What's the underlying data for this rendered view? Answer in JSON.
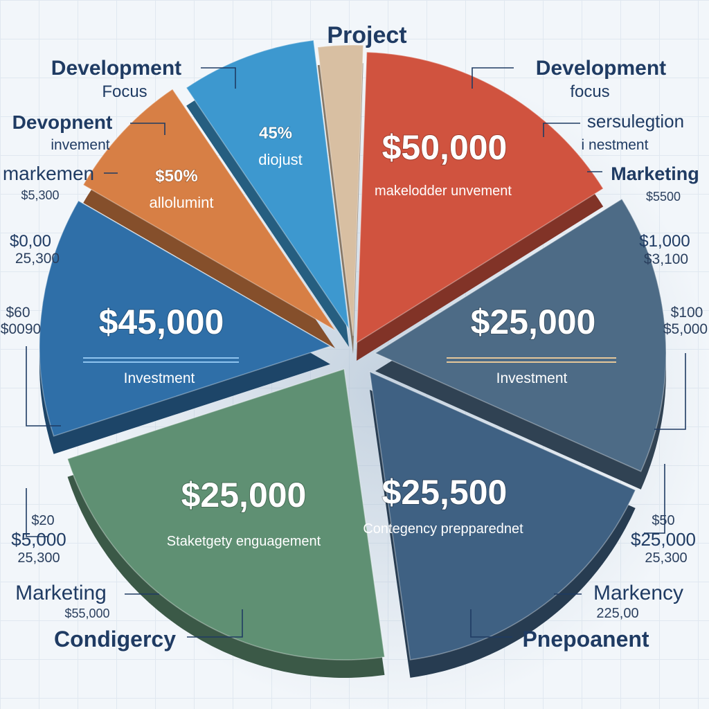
{
  "chart_data": {
    "type": "pie",
    "title": "Project",
    "slices": [
      {
        "value_label": "$50,000",
        "sub_label": "makelodder unvement",
        "color": "#d0533f"
      },
      {
        "value_label": "$25,000",
        "sub_label": "Investment",
        "color": "#4d6b86"
      },
      {
        "value_label": "$25,500",
        "sub_label": "Contegency prepparednet",
        "color": "#3f6183"
      },
      {
        "value_label": "$25,000",
        "sub_label": "Staketgety enguagement",
        "color": "#5f9073"
      },
      {
        "value_label": "$45,000",
        "sub_label": "Investment",
        "color": "#2f6fa8"
      },
      {
        "value_label": "$50%",
        "sub_label": "allolumint",
        "color": "#d77f45"
      },
      {
        "value_label": "45%",
        "sub_label": "diojust",
        "color": "#3d98cf"
      },
      {
        "value_label": "",
        "sub_label": "",
        "color": "#d8bfa2"
      }
    ]
  },
  "side_labels": {
    "top_left": {
      "title": "Development",
      "sub": "Focus"
    },
    "top_right": {
      "title": "Development",
      "sub": "focus"
    },
    "left_1": {
      "title": "Devopnent",
      "sub": "invement"
    },
    "left_2": {
      "title": "markemen",
      "sub": "$5,300"
    },
    "left_3": {
      "line1": "$0,00",
      "line2": "25,300"
    },
    "left_4": {
      "line1": "$60",
      "line2": "$0090"
    },
    "left_5": {
      "line1": "$20",
      "line2": "$5,000",
      "line3": "25,300"
    },
    "left_6": {
      "title": "Marketing",
      "sub": "$55,000"
    },
    "left_7": {
      "title": "Condigercy"
    },
    "right_1": {
      "title": "sersulegtion",
      "sub": "i nestment"
    },
    "right_2": {
      "title": "Marketing",
      "sub": "$5500"
    },
    "right_3": {
      "line1": "$1,000",
      "line2": "$3,100"
    },
    "right_4": {
      "line1": "$100",
      "line2": "$5,000"
    },
    "right_5": {
      "line1": "$50",
      "line2": "$25,000",
      "line3": "25,300"
    },
    "right_6": {
      "title": "Markency",
      "sub": "225,00"
    },
    "right_7": {
      "title": "Pnepoanent"
    }
  }
}
